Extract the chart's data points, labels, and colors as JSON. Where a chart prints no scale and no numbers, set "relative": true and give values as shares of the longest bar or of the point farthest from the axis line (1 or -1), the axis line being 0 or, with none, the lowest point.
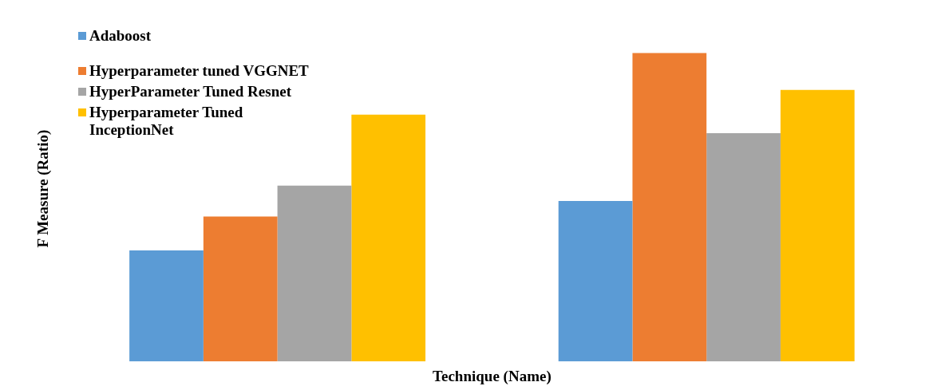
{
  "chart_data": {
    "type": "bar",
    "relative": true,
    "xlabel": "Technique (Name)",
    "ylabel": "F Measure (Ratio)",
    "categories": [
      null,
      null
    ],
    "legend": "top left",
    "grid": false,
    "series": [
      {
        "name": "Adaboost",
        "color": "#5b9bd5",
        "values": [
          0.36,
          0.52
        ]
      },
      {
        "name": "Hyperparameter tuned VGGNET",
        "color": "#ed7d31",
        "values": [
          0.47,
          1
        ]
      },
      {
        "name": "HyperParameter Tuned Resnet",
        "color": "#a5a5a5",
        "values": [
          0.57,
          0.74
        ]
      },
      {
        "name": "Hyperparameter Tuned InceptionNet",
        "color": "#ffc000",
        "values": [
          0.8,
          0.88
        ]
      }
    ]
  }
}
